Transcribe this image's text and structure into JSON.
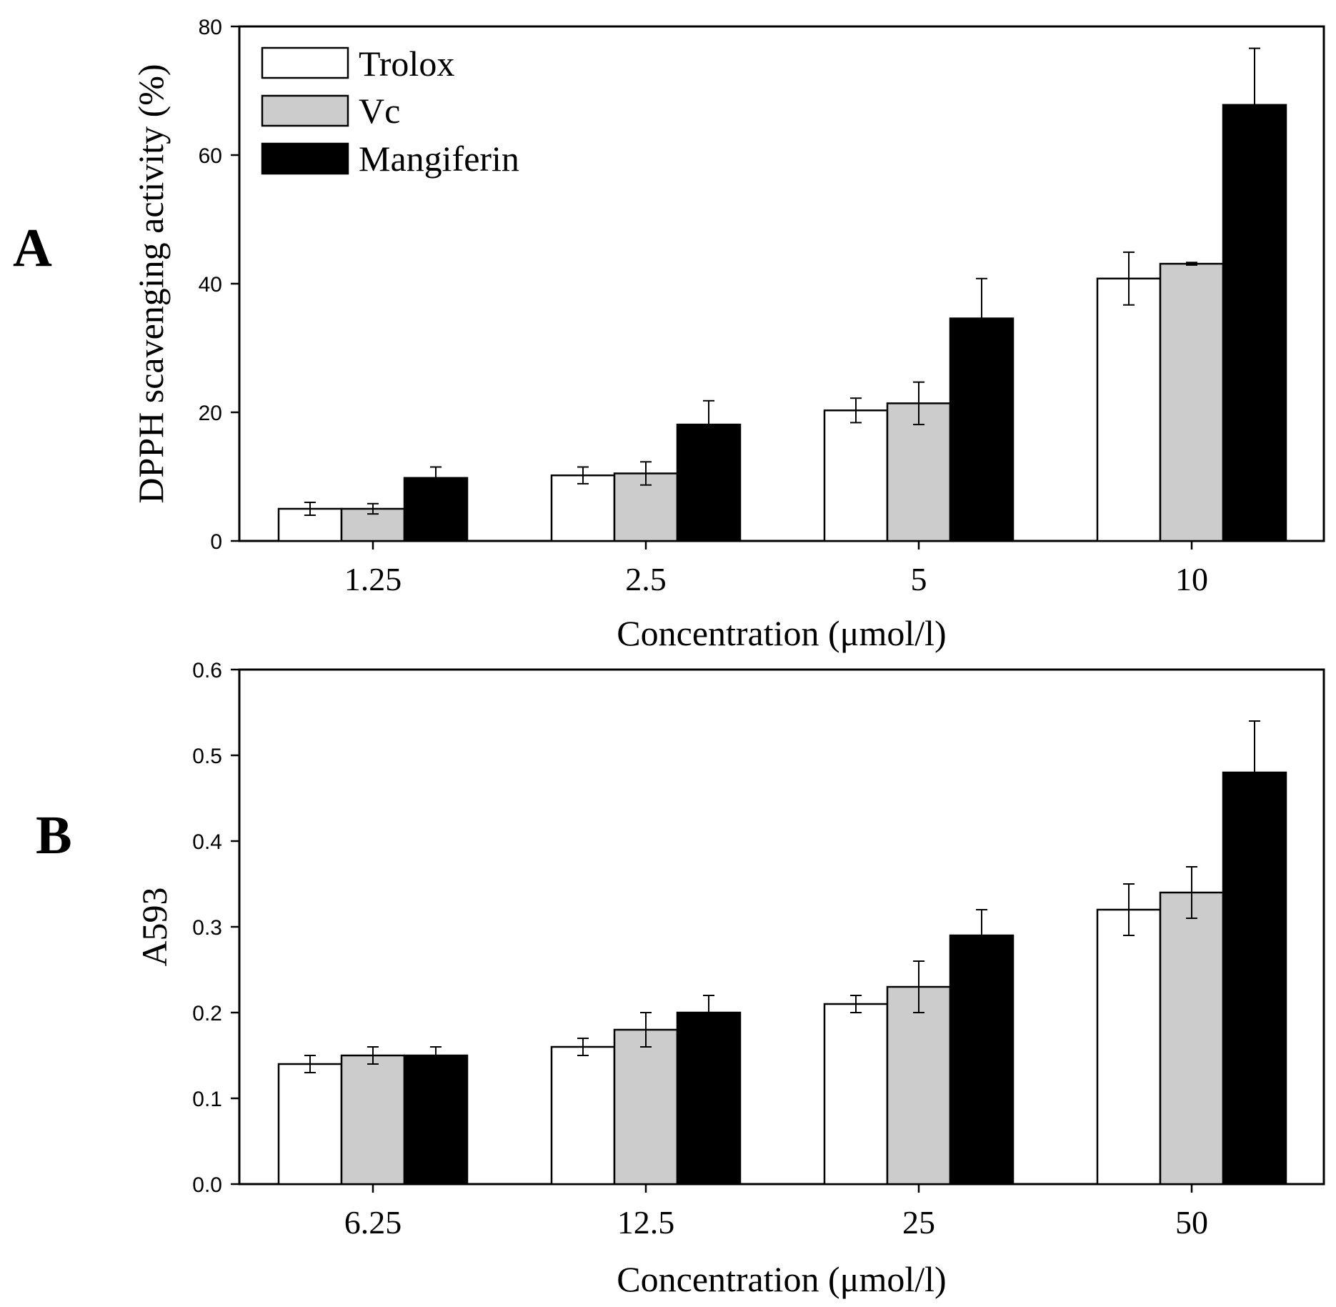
{
  "figure": {
    "panels": [
      "A",
      "B"
    ]
  },
  "chart_data": [
    {
      "type": "bar",
      "panel_label": "A",
      "categories": [
        "1.25",
        "2.5",
        "5",
        "10"
      ],
      "series": [
        {
          "name": "Trolox",
          "color": "#ffffff",
          "values": [
            5.0,
            10.2,
            20.3,
            40.8
          ],
          "errors": [
            1.0,
            1.3,
            1.9,
            4.1
          ]
        },
        {
          "name": "Vc",
          "color": "#cccccc",
          "values": [
            5.0,
            10.5,
            21.4,
            43.1
          ],
          "errors": [
            0.8,
            1.8,
            3.3,
            0.2
          ]
        },
        {
          "name": "Mangiferin",
          "color": "#000000",
          "values": [
            9.8,
            18.1,
            34.6,
            67.8
          ],
          "errors": [
            1.7,
            3.7,
            6.2,
            8.8
          ]
        }
      ],
      "xlabel": "Concentration (μmol/l)",
      "ylabel": "DPPH scavenging activity (%)",
      "ylim": [
        0,
        80
      ],
      "yticks": [
        "0",
        "20",
        "40",
        "60",
        "80"
      ],
      "ytick_values": [
        0,
        20,
        40,
        60,
        80
      ],
      "legend": [
        "Trolox",
        "Vc",
        "Mangiferin"
      ],
      "legend_position": "top-left"
    },
    {
      "type": "bar",
      "panel_label": "B",
      "categories": [
        "6.25",
        "12.5",
        "25",
        "50"
      ],
      "series": [
        {
          "name": "Trolox",
          "color": "#ffffff",
          "values": [
            0.14,
            0.16,
            0.21,
            0.32
          ],
          "errors": [
            0.01,
            0.01,
            0.01,
            0.03
          ]
        },
        {
          "name": "Vc",
          "color": "#cccccc",
          "values": [
            0.15,
            0.18,
            0.23,
            0.34
          ],
          "errors": [
            0.01,
            0.02,
            0.03,
            0.03
          ]
        },
        {
          "name": "Mangiferin",
          "color": "#000000",
          "values": [
            0.15,
            0.2,
            0.29,
            0.48
          ],
          "errors": [
            0.01,
            0.02,
            0.03,
            0.06
          ]
        }
      ],
      "xlabel": "Concentration (μmol/l)",
      "ylabel": "A593",
      "ylim": [
        0,
        0.6
      ],
      "yticks": [
        "0.0",
        "0.1",
        "0.2",
        "0.3",
        "0.4",
        "0.5",
        "0.6"
      ],
      "ytick_values": [
        0,
        0.1,
        0.2,
        0.3,
        0.4,
        0.5,
        0.6
      ]
    }
  ]
}
